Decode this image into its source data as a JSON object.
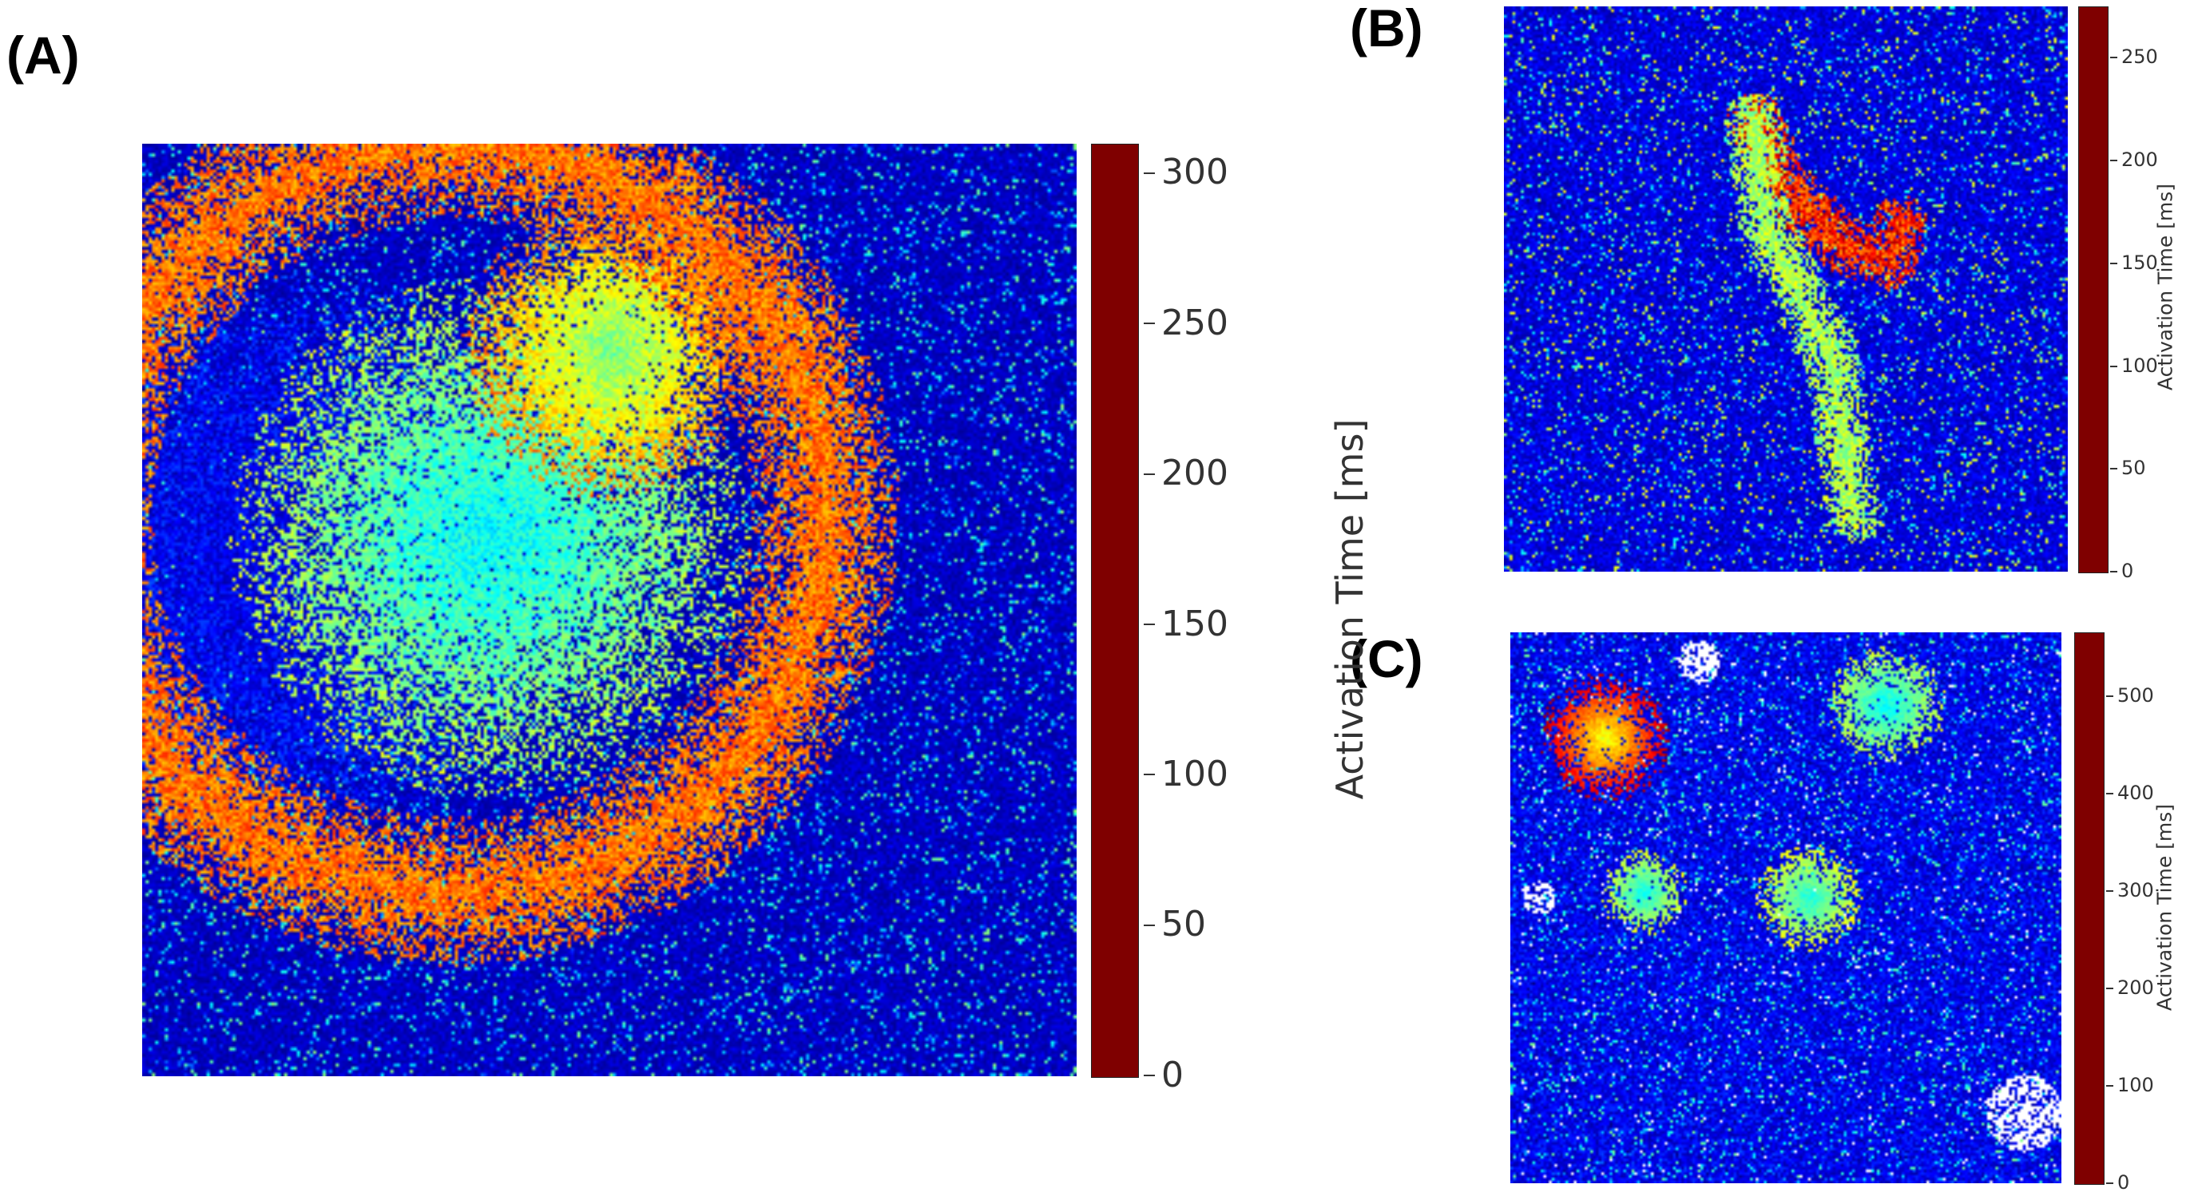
{
  "colormap": [
    "#00007f",
    "#0000ff",
    "#007fff",
    "#00ffff",
    "#7fff7f",
    "#ffff00",
    "#ff7f00",
    "#ff0000",
    "#7f0000"
  ],
  "chart_data": [
    {
      "type": "heatmap",
      "panel": "(A)",
      "colorbar_label": "Activation Time [ms]",
      "colorbar_range": [
        0,
        310
      ],
      "colorbar_ticks": [
        0,
        50,
        100,
        150,
        200,
        250,
        300
      ],
      "description_pattern": "circular wavefront from left-center",
      "blobs": [
        {
          "cx": 0.17,
          "cy": 0.44,
          "r": 0.3,
          "v": 40
        },
        {
          "cx": 0.37,
          "cy": 0.42,
          "r": 0.28,
          "v": 150
        },
        {
          "cx": 0.5,
          "cy": 0.22,
          "r": 0.16,
          "v": 200
        }
      ],
      "fronts": [
        {
          "cx": 0.33,
          "cy": 0.4,
          "r": 0.4,
          "w": 0.08,
          "v": 235
        }
      ],
      "background_value": 20,
      "speckle_max": 160
    },
    {
      "type": "heatmap",
      "panel": "(B)",
      "colorbar_label": "Activation Time [ms]",
      "colorbar_range": [
        0,
        275
      ],
      "colorbar_ticks": [
        0,
        50,
        100,
        150,
        200,
        250
      ],
      "blobs": [],
      "arcs": [
        {
          "pts": [
            [
              0.44,
              0.2
            ],
            [
              0.5,
              0.32
            ],
            [
              0.6,
              0.42
            ],
            [
              0.68,
              0.45
            ],
            [
              0.7,
              0.38
            ]
          ],
          "w": 0.05,
          "v": 230
        },
        {
          "pts": [
            [
              0.44,
              0.2
            ],
            [
              0.46,
              0.38
            ],
            [
              0.52,
              0.5
            ],
            [
              0.58,
              0.62
            ],
            [
              0.6,
              0.78
            ],
            [
              0.62,
              0.9
            ]
          ],
          "w": 0.05,
          "v": 150
        }
      ],
      "background_value": 25,
      "speckle_max": 180
    },
    {
      "type": "heatmap",
      "panel": "(C)",
      "colorbar_label": "Activation Time [ms]",
      "colorbar_range": [
        0,
        565
      ],
      "colorbar_ticks": [
        0,
        100,
        200,
        300,
        400,
        500
      ],
      "blobs": [
        {
          "cx": 0.17,
          "cy": 0.19,
          "r": 0.12,
          "v": 450
        },
        {
          "cx": 0.68,
          "cy": 0.13,
          "r": 0.11,
          "v": 280
        },
        {
          "cx": 0.24,
          "cy": 0.47,
          "r": 0.08,
          "v": 290
        },
        {
          "cx": 0.54,
          "cy": 0.48,
          "r": 0.1,
          "v": 300
        }
      ],
      "background_value": 60,
      "speckle_max": 280,
      "gaps": [
        {
          "cx": 0.34,
          "cy": 0.05,
          "r": 0.04
        },
        {
          "cx": 0.93,
          "cy": 0.87,
          "r": 0.07
        },
        {
          "cx": 0.05,
          "cy": 0.48,
          "r": 0.03
        }
      ]
    }
  ],
  "panels": {
    "a": {
      "label": "(A)"
    },
    "b": {
      "label": "(B)"
    },
    "c": {
      "label": "(C)"
    }
  }
}
